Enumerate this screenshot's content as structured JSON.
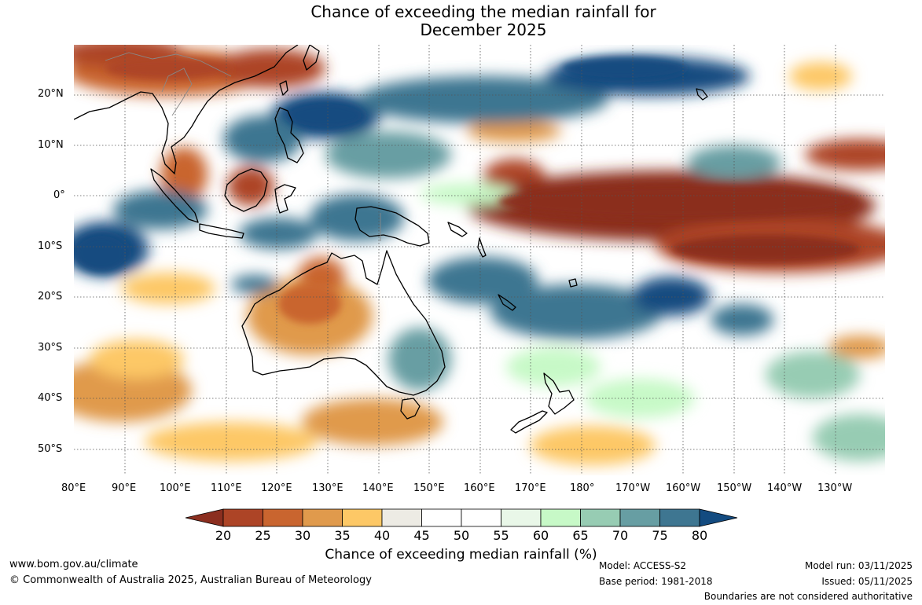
{
  "title_line1": "Chance of exceeding the median rainfall for",
  "title_line2": "December 2025",
  "lat_labels": [
    "20°N",
    "10°N",
    "0°",
    "10°S",
    "20°S",
    "30°S",
    "40°S",
    "50°S"
  ],
  "lon_labels": [
    "80°E",
    "90°E",
    "100°E",
    "110°E",
    "120°E",
    "130°E",
    "140°E",
    "150°E",
    "160°E",
    "170°E",
    "180°",
    "170°W",
    "160°W",
    "150°W",
    "140°W",
    "130°W"
  ],
  "colorbar": {
    "ticks": [
      "20",
      "25",
      "30",
      "35",
      "40",
      "45",
      "50",
      "55",
      "60",
      "65",
      "70",
      "75",
      "80"
    ],
    "colors": [
      "#8b2e1f",
      "#ad4426",
      "#c9652f",
      "#e09a4c",
      "#fdc866",
      "#edebe4",
      "#ffffff",
      "#ffffff",
      "#e9f7e8",
      "#c7f9c7",
      "#97ccb3",
      "#679ea3",
      "#3e7691",
      "#134b80"
    ],
    "title": "Chance of exceeding median rainfall (%)"
  },
  "footer": {
    "website": "www.bom.gov.au/climate",
    "copyright": "© Commonwealth of Australia 2025, Australian Bureau of Meteorology",
    "model": "Model: ACCESS-S2",
    "base_period": "Base period: 1981-2018",
    "model_run": "Model run: 03/11/2025",
    "issued": "Issued: 05/11/2025",
    "disclaimer": "Boundaries are not considered authoritative"
  }
}
